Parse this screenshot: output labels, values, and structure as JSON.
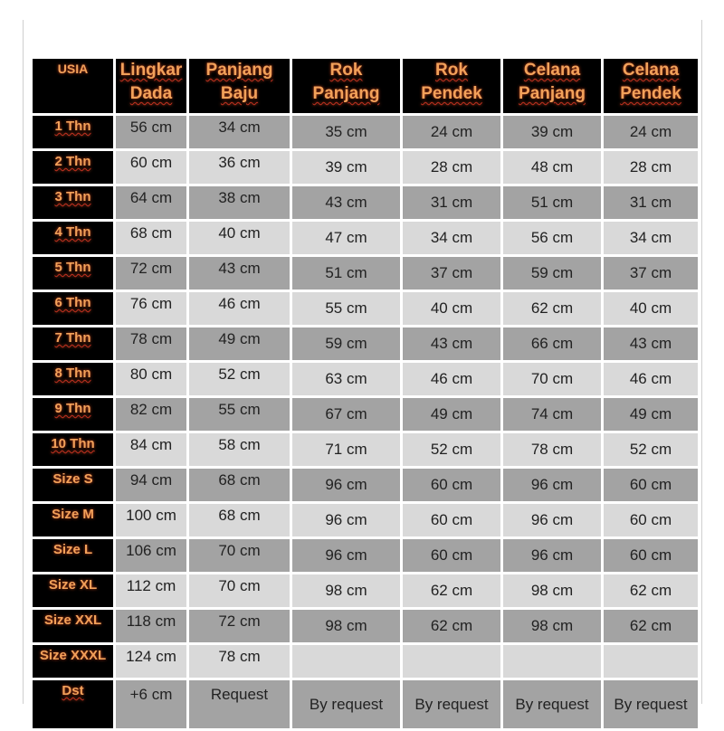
{
  "headers": [
    [
      "USIA",
      ""
    ],
    [
      "Lingkar",
      "Dada"
    ],
    [
      "Panjang",
      "Baju"
    ],
    [
      "Rok",
      "Panjang"
    ],
    [
      "Rok",
      "Pendek"
    ],
    [
      "Celana",
      "Panjang"
    ],
    [
      "Celana",
      "Pendek"
    ]
  ],
  "rows": [
    [
      "1 Thn",
      "56 cm",
      "34 cm",
      "35 cm",
      "24 cm",
      "39 cm",
      "24 cm"
    ],
    [
      "2 Thn",
      "60 cm",
      "36 cm",
      "39 cm",
      "28 cm",
      "48 cm",
      "28 cm"
    ],
    [
      "3 Thn",
      "64 cm",
      "38 cm",
      "43 cm",
      "31 cm",
      "51 cm",
      "31 cm"
    ],
    [
      "4 Thn",
      "68 cm",
      "40 cm",
      "47 cm",
      "34 cm",
      "56 cm",
      "34 cm"
    ],
    [
      "5 Thn",
      "72 cm",
      "43 cm",
      "51 cm",
      "37 cm",
      "59 cm",
      "37 cm"
    ],
    [
      "6 Thn",
      "76 cm",
      "46 cm",
      "55 cm",
      "40 cm",
      "62 cm",
      "40 cm"
    ],
    [
      "7 Thn",
      "78 cm",
      "49 cm",
      "59 cm",
      "43 cm",
      "66 cm",
      "43 cm"
    ],
    [
      "8 Thn",
      "80 cm",
      "52 cm",
      "63 cm",
      "46 cm",
      "70 cm",
      "46 cm"
    ],
    [
      "9 Thn",
      "82 cm",
      "55 cm",
      "67 cm",
      "49 cm",
      "74 cm",
      "49 cm"
    ],
    [
      "10 Thn",
      "84 cm",
      "58 cm",
      "71 cm",
      "52 cm",
      "78 cm",
      "52 cm"
    ],
    [
      "Size S",
      "94 cm",
      "68 cm",
      "96  cm",
      "60 cm",
      "96 cm",
      "60 cm"
    ],
    [
      "Size M",
      "100 cm",
      "68 cm",
      "96  cm",
      "60 cm",
      "96 cm",
      "60 cm"
    ],
    [
      "Size L",
      "106 cm",
      "70 cm",
      "96 cm",
      "60 cm",
      "96 cm",
      "60 cm"
    ],
    [
      "Size XL",
      "112 cm",
      "70 cm",
      "98 cm",
      "62 cm",
      "98 cm",
      "62 cm"
    ],
    [
      "Size XXL",
      "118 cm",
      "72 cm",
      "98 cm",
      "62 cm",
      "98 cm",
      "62 cm"
    ],
    [
      "Size XXXL",
      "124 cm",
      "78 cm",
      "",
      "",
      "",
      ""
    ],
    [
      "Dst",
      "+6 cm",
      "Request",
      "By request",
      "By request",
      "By request",
      "By request"
    ]
  ],
  "colors": {
    "header_bg": "#000000",
    "header_text": "#f2a15a",
    "row_dark": "#a3a3a3",
    "row_light": "#d9d9d9"
  }
}
